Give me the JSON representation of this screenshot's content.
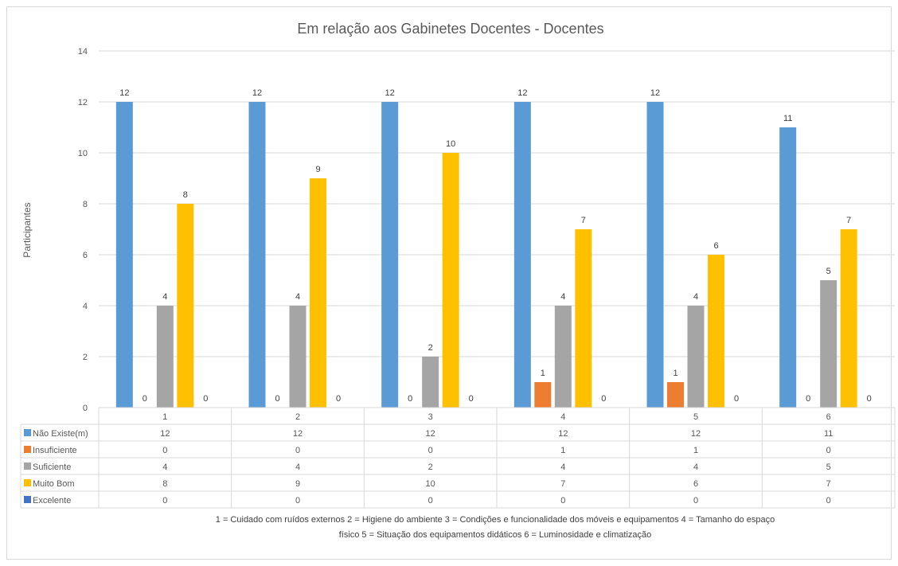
{
  "chart_data": {
    "type": "bar",
    "title": "Em relação aos Gabinetes Docentes - Docentes",
    "ylabel": "Participantes",
    "xlabel": "",
    "ylim": [
      0,
      14
    ],
    "yticks": [
      0,
      2,
      4,
      6,
      8,
      10,
      12,
      14
    ],
    "grid": true,
    "legend": "data-table",
    "categories": [
      "1",
      "2",
      "3",
      "4",
      "5",
      "6"
    ],
    "series": [
      {
        "name": "Não Existe(m)",
        "color": "#5b9bd5",
        "values": [
          12,
          12,
          12,
          12,
          12,
          11
        ]
      },
      {
        "name": "Insuficiente",
        "color": "#ed7d31",
        "values": [
          0,
          0,
          0,
          1,
          1,
          0
        ]
      },
      {
        "name": "Suficiente",
        "color": "#a5a5a5",
        "values": [
          4,
          4,
          2,
          4,
          4,
          5
        ]
      },
      {
        "name": "Muito Bom",
        "color": "#ffc000",
        "values": [
          8,
          9,
          10,
          7,
          6,
          7
        ]
      },
      {
        "name": "Excelente",
        "color": "#4472c4",
        "values": [
          0,
          0,
          0,
          0,
          0,
          0
        ]
      }
    ],
    "footnote_line1": "1 = Cuidado com ruídos externos     2 = Higiene do ambiente     3 = Condições e funcionalidade dos móveis e equipamentos     4 = Tamanho do espaço",
    "footnote_line2": "físico     5 = Situação dos equipamentos didáticos     6 = Luminosidade e climatização"
  }
}
